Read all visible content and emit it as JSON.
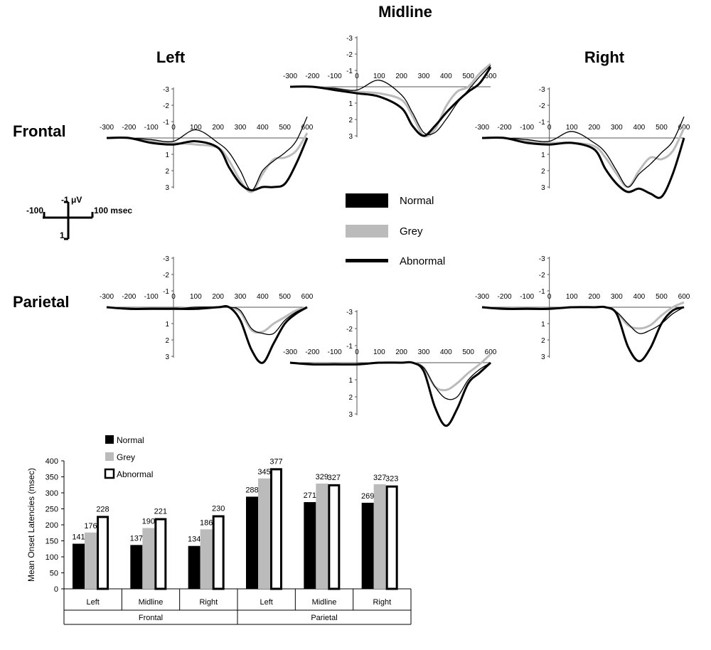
{
  "headings": {
    "midline": "Midline",
    "left": "Left",
    "right": "Right",
    "frontal": "Frontal",
    "parietal": "Parietal"
  },
  "scale_bar": {
    "uv_label": "-1 μV",
    "ms_left": "-100",
    "ms_right": "100 msec",
    "one": "1"
  },
  "erp_axes": {
    "x_ticks": [
      "-300",
      "-200",
      "-100",
      "0",
      "100",
      "200",
      "300",
      "400",
      "500",
      "600"
    ],
    "y_ticks": [
      "-3",
      "-2",
      "-1",
      "1",
      "2",
      "3"
    ]
  },
  "erp_legend": [
    {
      "name": "Normal",
      "color": "#000000"
    },
    {
      "name": "Grey",
      "color": "#bbbbbb"
    },
    {
      "name": "Abnormal",
      "color": "#000000"
    }
  ],
  "chart_data": [
    {
      "type": "line",
      "panel": "Frontal Left",
      "xlim": [
        -300,
        600
      ],
      "ylim": [
        -3,
        3
      ],
      "series": [
        {
          "name": "Normal",
          "x": [
            -300,
            -200,
            -100,
            0,
            100,
            200,
            250,
            300,
            350,
            400,
            450,
            500,
            550,
            600
          ],
          "y": [
            0,
            0,
            0.3,
            0.4,
            0.2,
            0.6,
            1.8,
            2.8,
            3.2,
            3.0,
            3.0,
            2.8,
            1.6,
            0
          ]
        },
        {
          "name": "Grey",
          "x": [
            -300,
            -200,
            -100,
            0,
            100,
            200,
            250,
            300,
            350,
            400,
            450,
            500,
            550,
            600
          ],
          "y": [
            0,
            0,
            0.2,
            0.3,
            0.4,
            0.6,
            1.4,
            2.6,
            3.3,
            2.2,
            1.3,
            1.2,
            0.8,
            -0.3
          ]
        },
        {
          "name": "Abnormal",
          "x": [
            -300,
            -200,
            -100,
            0,
            100,
            200,
            250,
            300,
            350,
            400,
            450,
            500,
            550,
            600
          ],
          "y": [
            0,
            0,
            0.1,
            0.2,
            -0.5,
            0.3,
            0.9,
            2.0,
            3.2,
            2.0,
            1.4,
            0.9,
            0.2,
            -1.3
          ]
        }
      ]
    },
    {
      "type": "line",
      "panel": "Frontal Midline",
      "xlim": [
        -300,
        600
      ],
      "ylim": [
        -3,
        3
      ],
      "series": [
        {
          "name": "Normal",
          "x": [
            -300,
            -200,
            -100,
            0,
            100,
            200,
            250,
            300,
            350,
            400,
            450,
            500,
            550,
            600
          ],
          "y": [
            0,
            0,
            0.2,
            0.4,
            0.6,
            1.3,
            2.4,
            3.0,
            2.4,
            1.6,
            0.9,
            0.3,
            -0.2,
            -1.2
          ]
        },
        {
          "name": "Grey",
          "x": [
            -300,
            -200,
            -100,
            0,
            100,
            200,
            250,
            300,
            350,
            400,
            450,
            500,
            550,
            600
          ],
          "y": [
            0,
            0,
            0.1,
            0.3,
            0.4,
            0.8,
            1.8,
            3.0,
            2.6,
            1.2,
            0.3,
            0,
            -0.8,
            -1.4
          ]
        },
        {
          "name": "Abnormal",
          "x": [
            -300,
            -200,
            -100,
            0,
            100,
            200,
            250,
            300,
            350,
            400,
            450,
            500,
            550,
            600
          ],
          "y": [
            0,
            0,
            0.1,
            0.2,
            -0.4,
            0.5,
            1.6,
            2.8,
            2.8,
            2.0,
            1.0,
            0.2,
            -0.6,
            -1.3
          ]
        }
      ]
    },
    {
      "type": "line",
      "panel": "Frontal Right",
      "xlim": [
        -300,
        600
      ],
      "ylim": [
        -3,
        3
      ],
      "series": [
        {
          "name": "Normal",
          "x": [
            -300,
            -200,
            -100,
            0,
            100,
            200,
            250,
            300,
            350,
            400,
            450,
            500,
            550,
            600
          ],
          "y": [
            0,
            0,
            0.3,
            0.4,
            0.3,
            0.7,
            1.9,
            2.8,
            3.3,
            3.1,
            3.4,
            3.6,
            2.2,
            0
          ]
        },
        {
          "name": "Grey",
          "x": [
            -300,
            -200,
            -100,
            0,
            100,
            200,
            250,
            300,
            350,
            400,
            450,
            500,
            550,
            600
          ],
          "y": [
            0,
            0,
            0.2,
            0.3,
            0.3,
            0.5,
            1.2,
            2.2,
            3.0,
            2.0,
            1.2,
            1.3,
            0.8,
            -0.6
          ]
        },
        {
          "name": "Abnormal",
          "x": [
            -300,
            -200,
            -100,
            0,
            100,
            200,
            250,
            300,
            350,
            400,
            450,
            500,
            550,
            600
          ],
          "y": [
            0,
            0,
            0.1,
            0.2,
            -0.4,
            0.3,
            0.9,
            2.0,
            3.0,
            2.2,
            1.6,
            0.9,
            0.2,
            -1.3
          ]
        }
      ]
    },
    {
      "type": "line",
      "panel": "Parietal Left",
      "xlim": [
        -300,
        600
      ],
      "ylim": [
        -3,
        3
      ],
      "series": [
        {
          "name": "Normal",
          "x": [
            -300,
            -200,
            -100,
            0,
            100,
            200,
            250,
            300,
            350,
            400,
            450,
            500,
            550,
            600
          ],
          "y": [
            0,
            0.1,
            0.1,
            0.1,
            0.1,
            0,
            0,
            0.8,
            2.6,
            3.4,
            2.2,
            1.0,
            0.4,
            0
          ]
        },
        {
          "name": "Grey",
          "x": [
            -300,
            -200,
            -100,
            0,
            100,
            200,
            250,
            300,
            350,
            400,
            450,
            500,
            550,
            600
          ],
          "y": [
            0,
            0.1,
            0.1,
            0.1,
            0,
            0,
            0,
            0.3,
            1.4,
            1.5,
            1.0,
            0.6,
            0.2,
            0
          ]
        },
        {
          "name": "Abnormal",
          "x": [
            -300,
            -200,
            -100,
            0,
            100,
            200,
            250,
            300,
            350,
            400,
            450,
            500,
            550,
            600
          ],
          "y": [
            0,
            0.1,
            0.1,
            0.1,
            0,
            0,
            0,
            0.2,
            1.3,
            1.6,
            1.6,
            0.8,
            0.3,
            0
          ]
        }
      ]
    },
    {
      "type": "line",
      "panel": "Parietal Midline",
      "xlim": [
        -300,
        600
      ],
      "ylim": [
        -3,
        3
      ],
      "series": [
        {
          "name": "Normal",
          "x": [
            -300,
            -200,
            -100,
            0,
            100,
            200,
            250,
            300,
            350,
            400,
            450,
            500,
            550,
            600
          ],
          "y": [
            0,
            0.1,
            0.1,
            0.1,
            0,
            0,
            0,
            0.5,
            2.6,
            3.7,
            2.7,
            1.2,
            0.6,
            0
          ]
        },
        {
          "name": "Grey",
          "x": [
            -300,
            -200,
            -100,
            0,
            100,
            200,
            250,
            300,
            350,
            400,
            450,
            500,
            550,
            600
          ],
          "y": [
            0,
            0.1,
            0.1,
            0.1,
            0,
            0,
            0,
            0.3,
            1.4,
            1.6,
            1.2,
            0.6,
            0.1,
            -0.5
          ]
        },
        {
          "name": "Abnormal",
          "x": [
            -300,
            -200,
            -100,
            0,
            100,
            200,
            250,
            300,
            350,
            400,
            450,
            500,
            550,
            600
          ],
          "y": [
            0,
            0.1,
            0.1,
            0.1,
            0,
            0,
            0,
            0.3,
            1.4,
            2.1,
            2.0,
            1.0,
            0.4,
            0
          ]
        }
      ]
    },
    {
      "type": "line",
      "panel": "Parietal Right",
      "xlim": [
        -300,
        600
      ],
      "ylim": [
        -3,
        3
      ],
      "series": [
        {
          "name": "Normal",
          "x": [
            -300,
            -200,
            -100,
            0,
            100,
            200,
            250,
            300,
            350,
            400,
            450,
            500,
            550,
            600
          ],
          "y": [
            0,
            0.1,
            0.1,
            0.1,
            0,
            0,
            0,
            0.4,
            2.4,
            3.3,
            2.5,
            1.0,
            0.2,
            0
          ]
        },
        {
          "name": "Grey",
          "x": [
            -300,
            -200,
            -100,
            0,
            100,
            200,
            250,
            300,
            350,
            400,
            450,
            500,
            550,
            600
          ],
          "y": [
            0,
            0.1,
            0.1,
            0.1,
            0,
            0,
            0,
            0.3,
            1.1,
            1.3,
            1.1,
            0.5,
            0,
            -0.3
          ]
        },
        {
          "name": "Abnormal",
          "x": [
            -300,
            -200,
            -100,
            0,
            100,
            200,
            250,
            300,
            350,
            400,
            450,
            500,
            550,
            600
          ],
          "y": [
            0,
            0.1,
            0.1,
            0.1,
            0,
            0,
            0,
            0.3,
            1.0,
            1.6,
            1.4,
            1.0,
            0.4,
            0
          ]
        }
      ]
    },
    {
      "type": "bar",
      "ylabel": "Mean Onset Latencies (msec)",
      "ylim": [
        0,
        400
      ],
      "y_ticks": [
        "0",
        "50",
        "100",
        "150",
        "200",
        "250",
        "300",
        "350",
        "400"
      ],
      "categories": [
        "Left",
        "Midline",
        "Right",
        "Left",
        "Midline",
        "Right"
      ],
      "groups": [
        "Frontal",
        "Parietal"
      ],
      "series": [
        {
          "name": "Normal",
          "values": [
            141,
            137,
            134,
            288,
            271,
            269
          ],
          "labels": [
            "141",
            "137",
            "134",
            "288",
            "271",
            "269"
          ]
        },
        {
          "name": "Grey",
          "values": [
            176,
            190,
            186,
            345,
            329,
            327
          ],
          "labels": [
            "176",
            "190",
            "186",
            "345",
            "329",
            "327"
          ]
        },
        {
          "name": "Abnormal",
          "values": [
            228,
            221,
            230,
            377,
            327,
            323
          ],
          "labels": [
            "228",
            "221",
            "230",
            "377",
            "327",
            "323"
          ]
        }
      ],
      "legend": [
        "Normal",
        "Grey",
        "Abnormal"
      ]
    }
  ]
}
